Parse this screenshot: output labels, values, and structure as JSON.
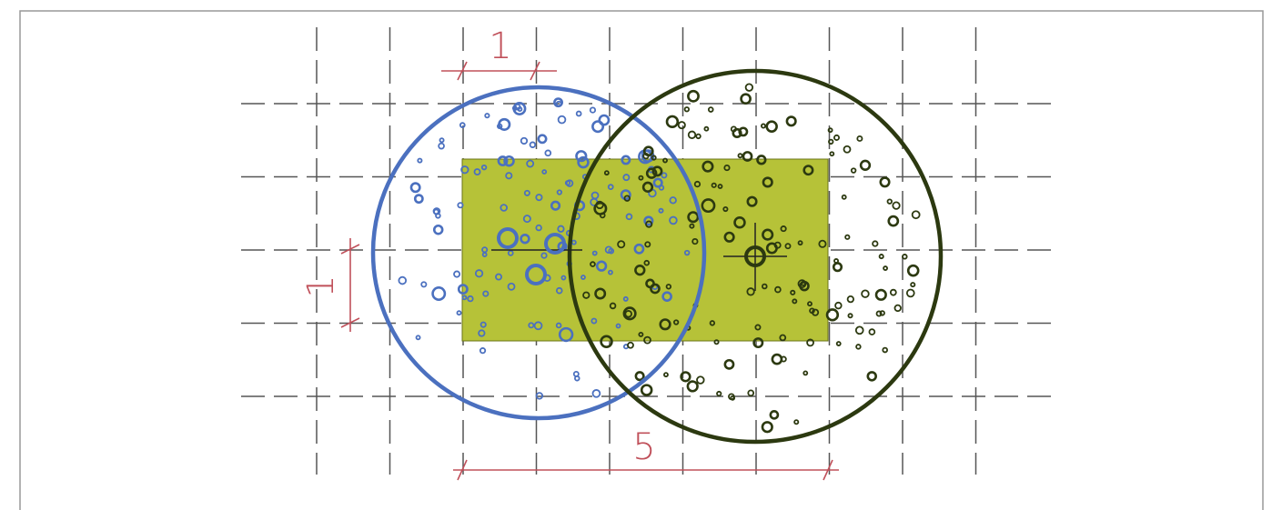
{
  "dimensions": {
    "top": "1",
    "left": "1",
    "bottom": "5"
  }
}
